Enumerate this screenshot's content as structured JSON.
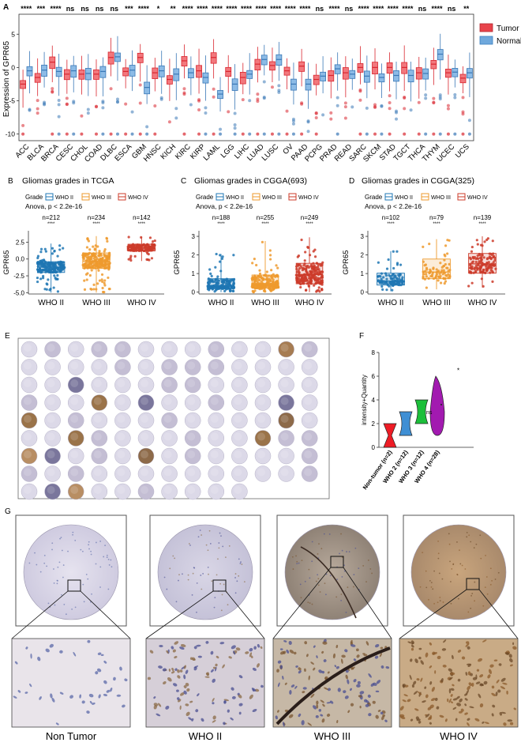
{
  "panel_labels": {
    "a": "A",
    "b": "B",
    "c": "C",
    "d": "D",
    "e": "E",
    "f": "F",
    "g": "G"
  },
  "colors": {
    "tumor": "#e8434b",
    "normal": "#3c7fc0",
    "who2": "#1f77b4",
    "who3": "#ee9a2e",
    "who4": "#cc3b2a",
    "violin_nt": "#ee1c25",
    "violin_w2": "#3f8fd4",
    "violin_w3": "#1cbf3a",
    "violin_w4": "#a21ab0"
  },
  "panel_a": {
    "ylabel": "Expression of GPR65",
    "legend": [
      "Tumor",
      "Normal"
    ],
    "yticks": [
      -10,
      -5,
      0,
      5
    ]
  },
  "panel_b": {
    "title": "Gliomas grades in TCGA",
    "legend_title": "Grade",
    "legend": [
      "WHO II",
      "WHO III",
      "WHO IV"
    ],
    "anova": "Anova, p < 2.2e-16",
    "ylabel": "GPR65",
    "sig": "****",
    "n": [
      "n=212",
      "n=234",
      "n=142"
    ],
    "yticks": [
      "2.5",
      "0.0",
      "-2.5",
      "-5.0"
    ]
  },
  "panel_c": {
    "title": "Gliomas grades in CGGA(693)",
    "legend_title": "Grade",
    "legend": [
      "WHO II",
      "WHO III",
      "WHO IV"
    ],
    "anova": "Anova, p < 2.2e-16",
    "ylabel": "GPR65",
    "sig": "****",
    "n": [
      "n=188",
      "n=255",
      "n=249"
    ],
    "yticks": [
      "3",
      "2",
      "1",
      "0"
    ]
  },
  "panel_d": {
    "title": "Gliomas grades in CGGA(325)",
    "legend_title": "Grade",
    "legend": [
      "WHO II",
      "WHO III",
      "WHO IV"
    ],
    "anova": "Anova, p < 2.2e-16",
    "ylabel": "GPR65",
    "sig": "****",
    "n": [
      "n=102",
      "n=79",
      "n=139"
    ],
    "yticks": [
      "3",
      "2",
      "1",
      "0"
    ]
  },
  "panel_f": {
    "ylabel": "intensity+Quantity",
    "categories": [
      "Non-tumor (n=2)",
      "WHO 2 (n=12)",
      "WHO 3 (n=12)",
      "WHO 4 (n=28)"
    ],
    "ns": "ns",
    "asterisk": "*",
    "yticks": [
      0,
      2,
      4,
      6,
      8
    ]
  },
  "panel_g": {
    "labels": [
      "Non Tumor",
      "WHO II",
      "WHO III",
      "WHO IV"
    ]
  },
  "chart_data": [
    {
      "type": "box",
      "id": "A",
      "title": "",
      "xlabel": "",
      "ylabel": "Expression of GPR65",
      "ylim": [
        -11,
        8
      ],
      "categories": [
        "ACC",
        "BLCA",
        "BRCA",
        "CESC",
        "CHOL",
        "COAD",
        "DLBC",
        "ESCA",
        "GBM",
        "HNSC",
        "KICH",
        "KIRC",
        "KIRP",
        "LAML",
        "LGG",
        "LIHC",
        "LUAD",
        "LUSC",
        "OV",
        "PAAD",
        "PCPG",
        "PRAD",
        "READ",
        "SARC",
        "SKCM",
        "STAD",
        "TGCT",
        "THCA",
        "THYM",
        "UCEC",
        "UCS"
      ],
      "significance": [
        "****",
        "***",
        "****",
        "ns",
        "ns",
        "ns",
        "ns",
        "***",
        "****",
        "*",
        "**",
        "****",
        "****",
        "****",
        "****",
        "****",
        "****",
        "****",
        "****",
        "****",
        "ns",
        "****",
        "ns",
        "****",
        "****",
        "****",
        "****",
        "ns",
        "****",
        "ns",
        "**"
      ],
      "series": [
        {
          "name": "Tumor",
          "median": [
            -2.5,
            -1.5,
            0.8,
            -1,
            -1,
            -1,
            1.5,
            -0.6,
            1.5,
            -0.8,
            -1.8,
            1,
            -0.5,
            1.5,
            -0.6,
            -1.5,
            0.5,
            0.3,
            -0.5,
            0.2,
            -1.8,
            -1.2,
            -0.8,
            0,
            0,
            0,
            0,
            -0.8,
            0.5,
            -0.8,
            -1.6
          ]
        },
        {
          "name": "Normal",
          "median": [
            -0.5,
            -0.4,
            -0.6,
            -0.5,
            -0.9,
            -0.6,
            1.6,
            -0.4,
            -3,
            -0.5,
            -1,
            -0.8,
            -1.5,
            -4,
            -2.5,
            -1,
            1.2,
            1.2,
            -2.5,
            -2.5,
            -1.3,
            -0.2,
            -1,
            -1.3,
            -1.5,
            -1.2,
            -1.2,
            -0.9,
            2,
            -0.7,
            -0.8
          ]
        }
      ]
    },
    {
      "type": "box",
      "id": "B",
      "title": "Gliomas grades in TCGA",
      "xlabel": "",
      "ylabel": "GPR65",
      "ylim": [
        -5.2,
        4.2
      ],
      "categories": [
        "WHO II",
        "WHO III",
        "WHO IV"
      ],
      "values": [
        {
          "min": -5.0,
          "q1": -2.0,
          "median": -1.2,
          "q3": -0.4,
          "max": 2.3
        },
        {
          "min": -5.0,
          "q1": -1.4,
          "median": -0.3,
          "q3": 0.9,
          "max": 3.4
        },
        {
          "min": -0.3,
          "q1": 1.2,
          "median": 1.7,
          "q3": 2.2,
          "max": 3.3
        }
      ]
    },
    {
      "type": "box",
      "id": "C",
      "title": "Gliomas grades in CGGA(693)",
      "xlabel": "",
      "ylabel": "GPR65",
      "ylim": [
        -0.1,
        3.3
      ],
      "categories": [
        "WHO II",
        "WHO III",
        "WHO IV"
      ],
      "values": [
        {
          "min": 0.0,
          "q1": 0.18,
          "median": 0.35,
          "q3": 0.72,
          "max": 2.05
        },
        {
          "min": 0.0,
          "q1": 0.22,
          "median": 0.45,
          "q3": 0.92,
          "max": 2.75
        },
        {
          "min": 0.0,
          "q1": 0.45,
          "median": 0.95,
          "q3": 1.55,
          "max": 2.95
        }
      ]
    },
    {
      "type": "box",
      "id": "D",
      "title": "Gliomas grades in CGGA(325)",
      "xlabel": "",
      "ylabel": "GPR65",
      "ylim": [
        -0.1,
        3.3
      ],
      "categories": [
        "WHO II",
        "WHO III",
        "WHO IV"
      ],
      "values": [
        {
          "min": 0.05,
          "q1": 0.38,
          "median": 0.6,
          "q3": 1.02,
          "max": 2.2
        },
        {
          "min": 0.15,
          "q1": 0.72,
          "median": 1.08,
          "q3": 1.78,
          "max": 2.85
        },
        {
          "min": 0.25,
          "q1": 1.02,
          "median": 1.52,
          "q3": 2.08,
          "max": 3.0
        }
      ]
    },
    {
      "type": "violin",
      "id": "F",
      "title": "",
      "xlabel": "",
      "ylabel": "intensity+Quantity",
      "ylim": [
        0,
        8
      ],
      "categories": [
        "Non-tumor (n=2)",
        "WHO 2 (n=12)",
        "WHO 3 (n=12)",
        "WHO 4 (n=28)"
      ],
      "values": [
        {
          "min": 0,
          "median": 1,
          "max": 2
        },
        {
          "min": 1,
          "median": 2,
          "max": 3
        },
        {
          "min": 2,
          "median": 3,
          "max": 4
        },
        {
          "min": 1,
          "median": 3,
          "max": 6
        }
      ]
    }
  ]
}
